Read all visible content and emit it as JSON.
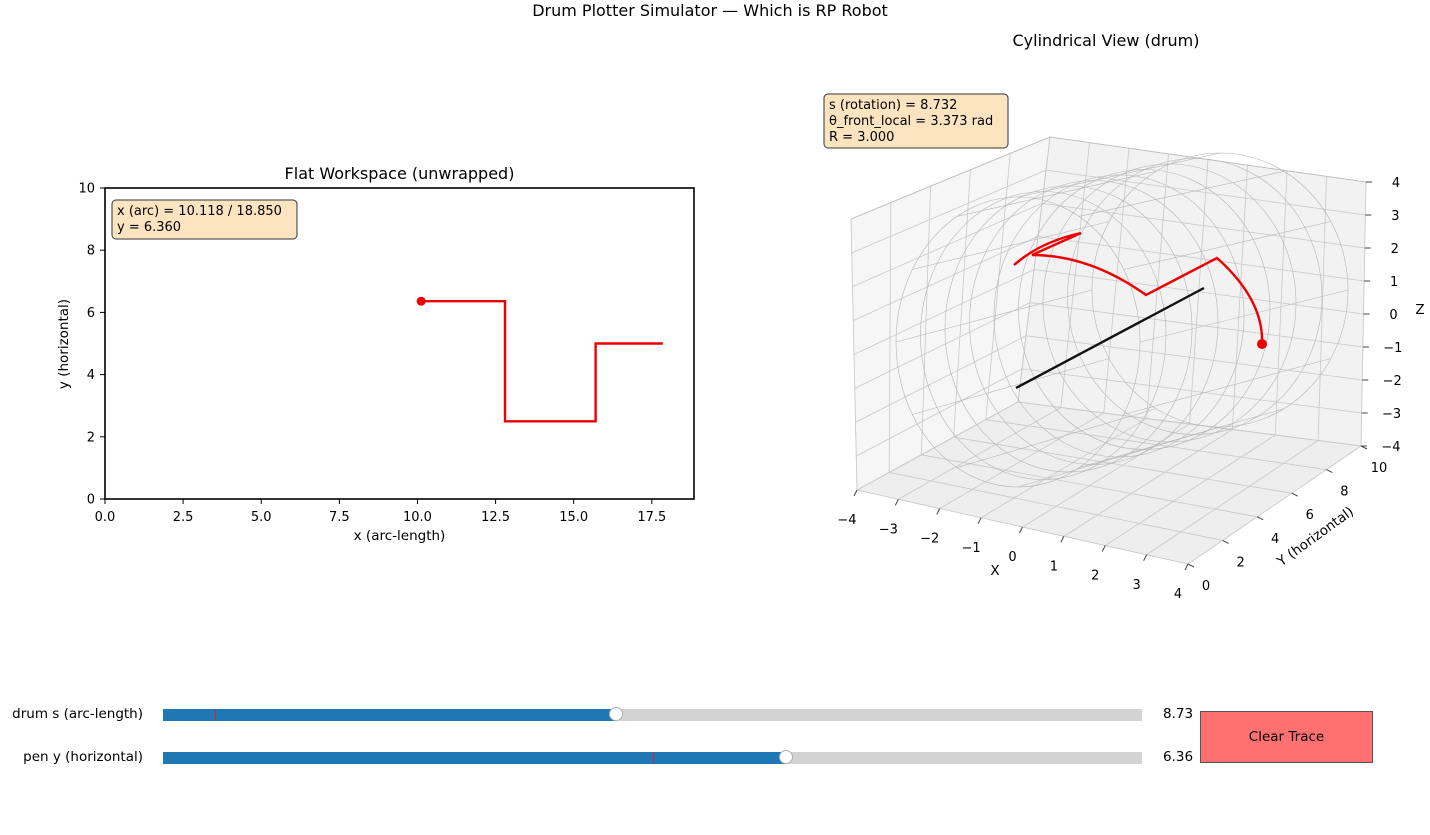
{
  "figure_title": "Drum Plotter Simulator — Which is RP Robot",
  "flat": {
    "title": "Flat Workspace (unwrapped)",
    "xlabel": "x (arc-length)",
    "ylabel": "y (horizontal)",
    "info_line1": "x (arc) = 10.118 / 18.850",
    "info_line2": "y = 6.360"
  },
  "drum": {
    "title": "Cylindrical View (drum)",
    "xlabel": "X",
    "ylabel": "Y (horizontal)",
    "zlabel": "Z",
    "info_line1": "s (rotation) = 8.732",
    "info_line2": "θ_front_local = 3.373 rad",
    "info_line3": "R = 3.000"
  },
  "sliders": [
    {
      "label": "drum s (arc-length)",
      "value_text": "8.73",
      "fraction": 0.463,
      "initial_fraction": 0.053
    },
    {
      "label": "pen y (horizontal)",
      "value_text": "6.36",
      "fraction": 0.636,
      "initial_fraction": 0.5
    }
  ],
  "clear_button": "Clear Trace",
  "colors": {
    "trace": "#ee0000",
    "slider_fill": "#1f77b4",
    "slider_track": "#d3d3d3",
    "button": "#ff7070",
    "info_box": "#fde4c0"
  },
  "chart_data": [
    {
      "type": "line",
      "title": "Flat Workspace (unwrapped)",
      "xlabel": "x (arc-length)",
      "ylabel": "y (horizontal)",
      "xlim": [
        0,
        18.85
      ],
      "ylim": [
        0,
        10
      ],
      "xticks": [
        "0.0",
        "2.5",
        "5.0",
        "7.5",
        "10.0",
        "12.5",
        "15.0",
        "17.5"
      ],
      "xtick_values": [
        0,
        2.5,
        5,
        7.5,
        10,
        12.5,
        15,
        17.5
      ],
      "yticks": [
        "0",
        "2",
        "4",
        "6",
        "8",
        "10"
      ],
      "ytick_values": [
        0,
        2,
        4,
        6,
        8,
        10
      ],
      "series": [
        {
          "x": [
            17.85,
            15.7,
            15.7,
            12.8,
            12.8,
            10.118
          ],
          "y": [
            5.0,
            5.0,
            2.5,
            2.5,
            6.36,
            6.36
          ]
        }
      ],
      "marker": {
        "x": 10.118,
        "y": 6.36
      }
    },
    {
      "type": "line",
      "title": "Cylindrical View (drum)",
      "xlabel": "X",
      "ylabel": "Y (horizontal)",
      "zlabel": "Z",
      "xlim": [
        -4,
        4
      ],
      "ylim": [
        0,
        10
      ],
      "zlim": [
        -4,
        4
      ],
      "xticks": [
        "−4",
        "−3",
        "−2",
        "−1",
        "0",
        "1",
        "2",
        "3",
        "4"
      ],
      "yticks": [
        "0",
        "2",
        "4",
        "6",
        "8",
        "10"
      ],
      "zticks": [
        "−4",
        "−3",
        "−2",
        "−1",
        "0",
        "1",
        "2",
        "3",
        "4"
      ],
      "grid": true
    }
  ]
}
